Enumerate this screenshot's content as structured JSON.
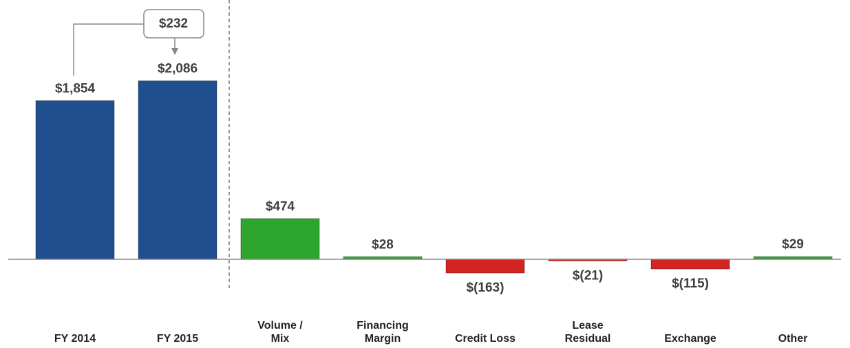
{
  "chart_data": {
    "type": "bar",
    "categories": [
      "FY 2014",
      "FY 2015",
      "Volume /\nMix",
      "Financing\nMargin",
      "Credit Loss",
      "Lease\nResidual",
      "Exchange",
      "Other"
    ],
    "values": [
      1854,
      2086,
      474,
      28,
      -163,
      -21,
      -115,
      29
    ],
    "value_labels": [
      "$1,854",
      "$2,086",
      "$474",
      "$28",
      "$(163)",
      "$(21)",
      "$(115)",
      "$29"
    ],
    "colors": [
      "#1f4f8f",
      "#1f4f8f",
      "#2ea62e",
      "#2ea62e",
      "#d42323",
      "#d42323",
      "#d42323",
      "#2ea62e"
    ],
    "ylim": [
      -1000,
      3000
    ],
    "annotation": "$232"
  }
}
